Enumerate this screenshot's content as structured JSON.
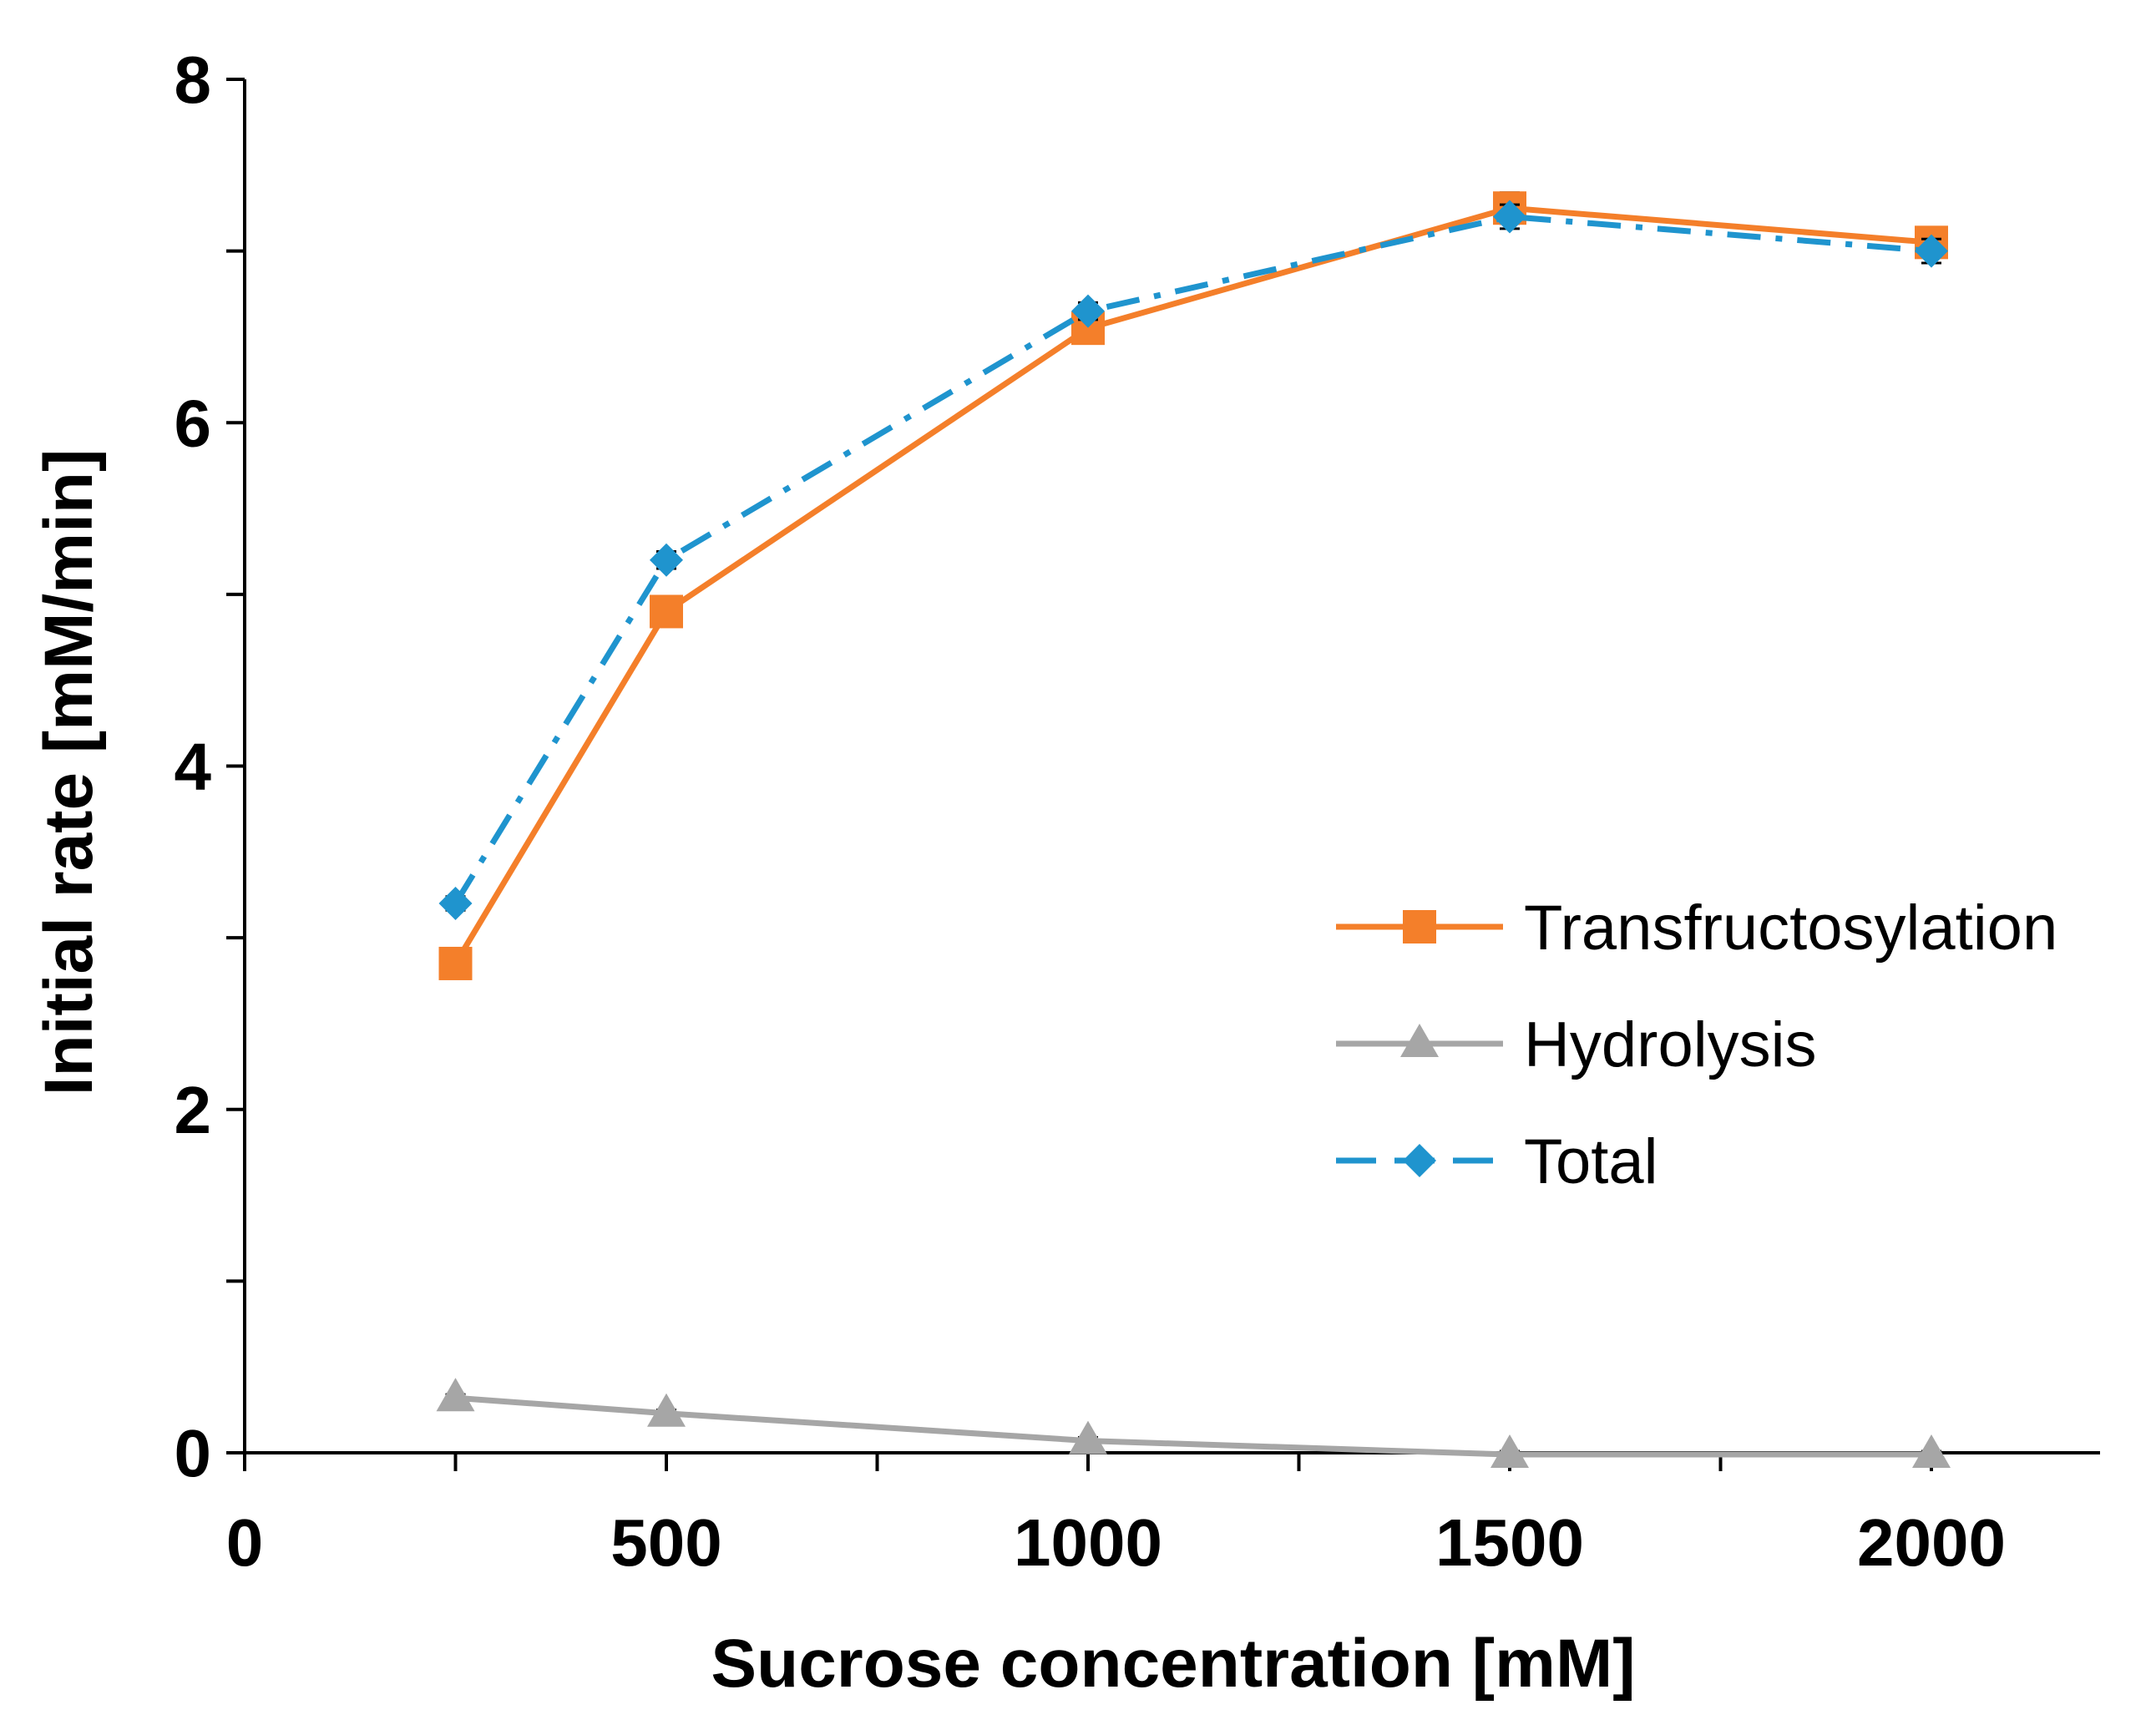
{
  "chart_data": {
    "type": "line",
    "title": "",
    "xlabel": "Sucrose concentration [mM]",
    "ylabel": "Initial rate [mM/min]",
    "xlim": [
      0,
      2200
    ],
    "ylim": [
      0,
      8
    ],
    "x_ticks": [
      0,
      500,
      1000,
      1500,
      2000
    ],
    "x_tick_labels": [
      "0",
      "500",
      "1000",
      "1500",
      "2000"
    ],
    "x_minor_ticks": [
      250,
      750,
      1250,
      1750
    ],
    "y_ticks": [
      0,
      2,
      4,
      6,
      8
    ],
    "y_tick_labels": [
      "0",
      "2",
      "4",
      "6",
      "8"
    ],
    "y_minor_ticks": [
      1,
      3,
      5,
      7
    ],
    "grid": false,
    "legend_position": "right",
    "series": [
      {
        "name": "Transfructosylation",
        "color": "#F47F2A",
        "marker": "square",
        "line_style": "solid",
        "x": [
          250,
          500,
          1000,
          1500,
          2000
        ],
        "values": [
          2.85,
          4.9,
          6.55,
          7.25,
          7.05
        ],
        "errors": [
          0.05,
          0.06,
          0.06,
          0.09,
          0.08
        ]
      },
      {
        "name": "Hydrolysis",
        "color": "#A6A6A6",
        "marker": "triangle",
        "line_style": "solid",
        "x": [
          250,
          500,
          1000,
          1500,
          2000
        ],
        "values": [
          0.32,
          0.23,
          0.07,
          -0.01,
          -0.01
        ],
        "errors": [
          0.02,
          0.02,
          0.02,
          0.02,
          0.02
        ]
      },
      {
        "name": "Total",
        "color": "#1F94CE",
        "marker": "diamond",
        "line_style": "dashdot",
        "x": [
          250,
          500,
          1000,
          1500,
          2000
        ],
        "values": [
          3.2,
          5.2,
          6.65,
          7.2,
          7.0
        ],
        "errors": [
          0.04,
          0.05,
          0.05,
          0.07,
          0.07
        ]
      }
    ]
  }
}
